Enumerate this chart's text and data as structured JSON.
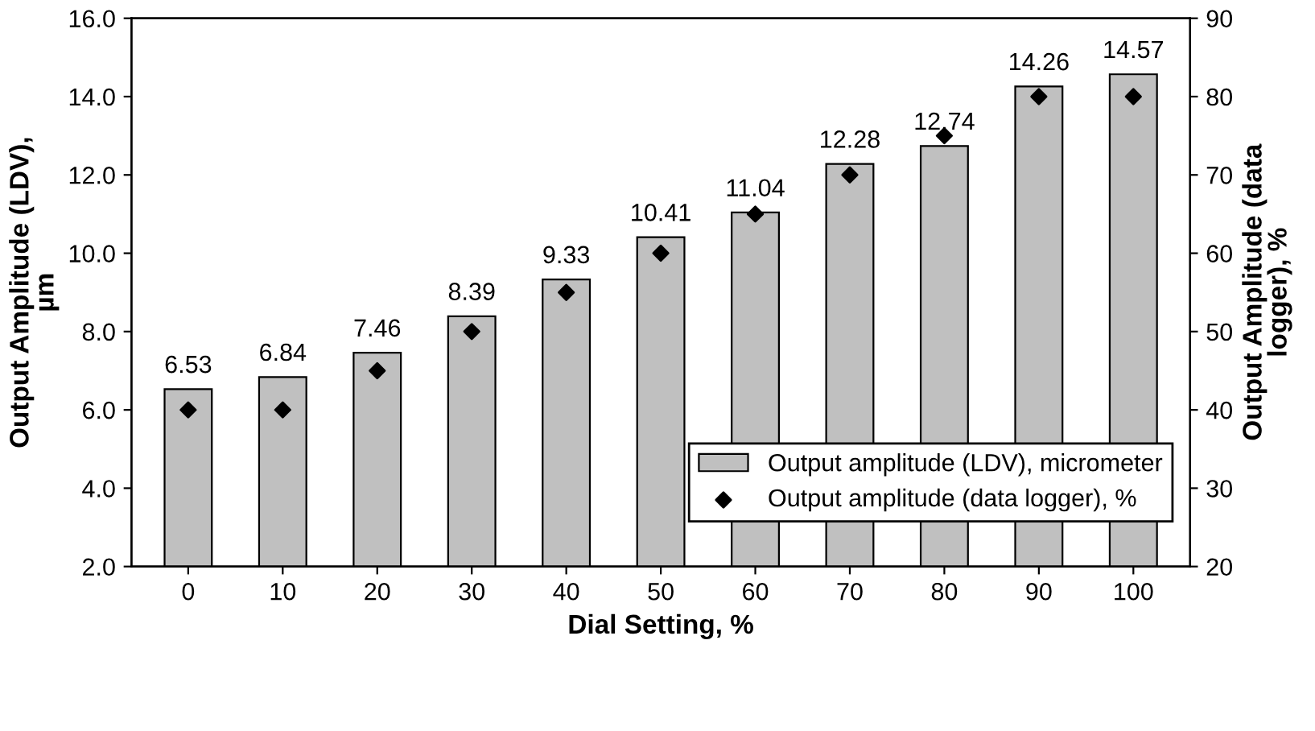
{
  "chart_data": {
    "type": "bar",
    "xlabel": "Dial Setting, %",
    "ylabel": "Output Amplitude (LDV),\nµm",
    "y2label": "Output Amplitude (data\nlogger), %",
    "categories": [
      "0",
      "10",
      "20",
      "30",
      "40",
      "50",
      "60",
      "70",
      "80",
      "90",
      "100"
    ],
    "series": [
      {
        "name": "Output amplitude (LDV), micrometer",
        "color": "#c0c0c0",
        "values": [
          6.53,
          6.84,
          7.46,
          8.39,
          9.33,
          10.41,
          11.04,
          12.28,
          12.74,
          14.26,
          14.57
        ],
        "value_labels": [
          "6.53",
          "6.84",
          "7.46",
          "8.39",
          "9.33",
          "10.41",
          "11.04",
          "12.28",
          "12.74",
          "14.26",
          "14.57"
        ]
      },
      {
        "name": "Output amplitude (data logger), %",
        "type": "scatter",
        "axis": "y2",
        "color": "#000000",
        "marker": "diamond",
        "values": [
          40,
          40,
          45,
          50,
          55,
          60,
          65,
          70,
          75,
          80,
          80
        ]
      }
    ],
    "ylim": [
      2,
      16
    ],
    "yticks": [
      {
        "value": 2,
        "label": "2.0"
      },
      {
        "value": 4,
        "label": "4.0"
      },
      {
        "value": 6,
        "label": "6.0"
      },
      {
        "value": 8,
        "label": "8.0"
      },
      {
        "value": 10,
        "label": "10.0"
      },
      {
        "value": 12,
        "label": "12.0"
      },
      {
        "value": 14,
        "label": "14.0"
      },
      {
        "value": 16,
        "label": "16.0"
      }
    ],
    "y2lim": [
      20,
      90
    ],
    "y2ticks": [
      20,
      30,
      40,
      50,
      60,
      70,
      80,
      90
    ],
    "grid": false,
    "legend": "bottom right"
  }
}
